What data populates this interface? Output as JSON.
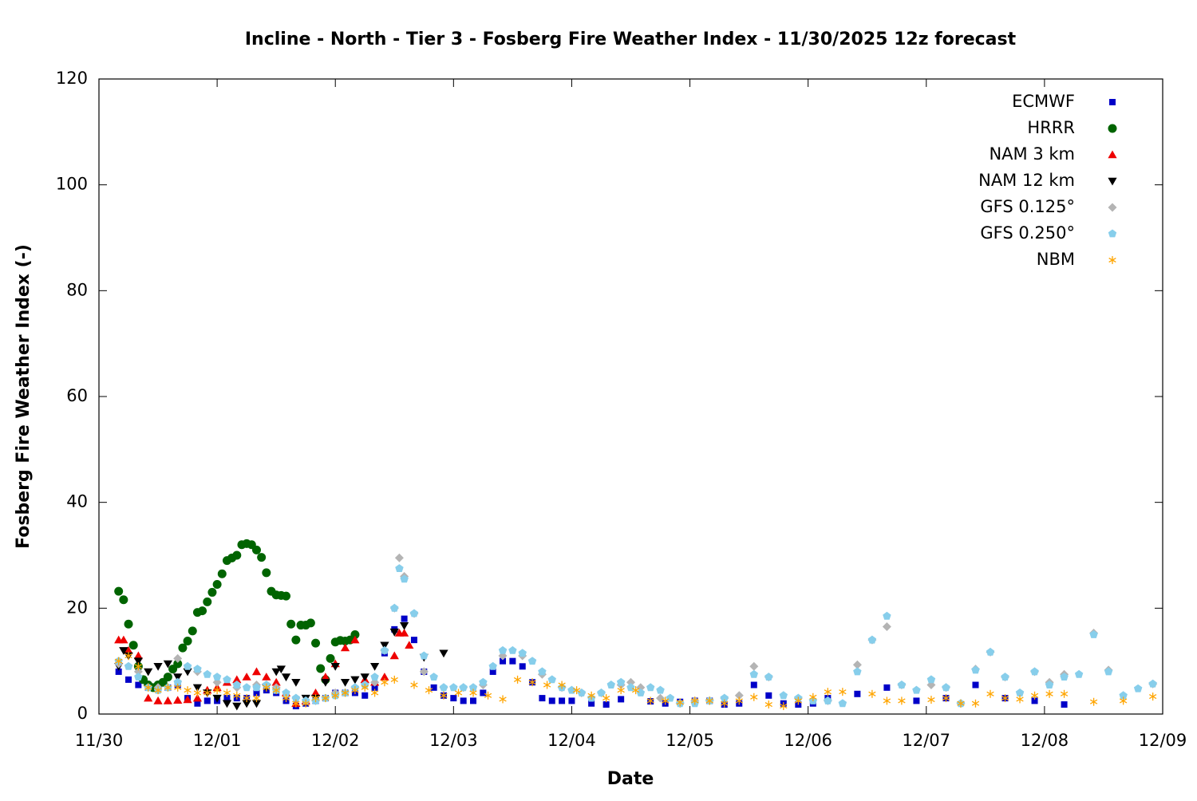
{
  "chart_data": {
    "type": "scatter",
    "title": "Incline - North - Tier 3 - Fosberg Fire Weather Index - 11/30/2025 12z forecast",
    "xlabel": "Date",
    "ylabel": "Fosberg Fire Weather Index (-)",
    "xlim": [
      0,
      216
    ],
    "ylim": [
      0,
      120
    ],
    "xticks": [
      {
        "value": 0,
        "label": "11/30"
      },
      {
        "value": 24,
        "label": "12/01"
      },
      {
        "value": 48,
        "label": "12/02"
      },
      {
        "value": 72,
        "label": "12/03"
      },
      {
        "value": 96,
        "label": "12/04"
      },
      {
        "value": 120,
        "label": "12/05"
      },
      {
        "value": 144,
        "label": "12/06"
      },
      {
        "value": 168,
        "label": "12/07"
      },
      {
        "value": 192,
        "label": "12/08"
      },
      {
        "value": 216,
        "label": "12/09"
      }
    ],
    "yticks": [
      0,
      20,
      40,
      60,
      80,
      100,
      120
    ],
    "legend": "top-right",
    "series": [
      {
        "name": "ECMWF",
        "color": "#0000c8",
        "marker": "square",
        "x": [
          4,
          6,
          8,
          10,
          12,
          14,
          16,
          18,
          20,
          22,
          24,
          26,
          28,
          30,
          32,
          34,
          36,
          38,
          40,
          42,
          44,
          46,
          48,
          50,
          52,
          54,
          56,
          58,
          60,
          62,
          64,
          66,
          68,
          70,
          72,
          74,
          76,
          78,
          80,
          82,
          84,
          86,
          88,
          90,
          92,
          94,
          96,
          100,
          103,
          106,
          112,
          115,
          118,
          121,
          124,
          127,
          130,
          133,
          136,
          139,
          142,
          145,
          148,
          154,
          160,
          166,
          172,
          178,
          184,
          190,
          196
        ],
        "values": [
          8,
          6.5,
          5.5,
          5,
          5,
          5,
          5.5,
          3,
          2,
          2.5,
          2.5,
          3,
          3,
          3,
          4,
          4.5,
          4,
          2.5,
          1.5,
          2,
          2.5,
          3,
          4,
          4,
          4,
          3.5,
          5,
          11.5,
          16,
          18,
          14,
          8,
          5,
          3.5,
          3,
          2.5,
          2.5,
          4,
          8,
          10,
          10,
          9,
          6,
          3,
          2.5,
          2.5,
          2.5,
          2,
          1.8,
          2.8,
          2.4,
          2,
          2.3,
          2.5,
          2.5,
          1.8,
          2,
          5.5,
          3.5,
          2,
          1.8,
          2,
          3,
          3.8,
          5,
          2.5,
          3,
          5.5,
          3,
          2.5,
          1.8
        ]
      },
      {
        "name": "HRRR",
        "color": "#006400",
        "marker": "circle",
        "x": [
          4,
          5,
          6,
          7,
          8,
          9,
          10,
          11,
          12,
          13,
          14,
          15,
          16,
          17,
          18,
          19,
          20,
          21,
          22,
          23,
          24,
          25,
          26,
          27,
          28,
          29,
          30,
          31,
          32,
          33,
          34,
          35,
          36,
          37,
          38,
          39,
          40,
          41,
          42,
          43,
          44,
          45,
          46,
          47,
          48,
          49,
          50,
          51,
          52
        ],
        "values": [
          23.2,
          21.6,
          17,
          13,
          9,
          6.5,
          5.5,
          5,
          5.5,
          6,
          7,
          8.5,
          9.5,
          12.5,
          13.8,
          15.7,
          19.2,
          19.5,
          21.2,
          23,
          24.5,
          26.5,
          29,
          29.5,
          30,
          32,
          32.2,
          32,
          31,
          29.6,
          26.7,
          23.2,
          22.5,
          22.4,
          22.3,
          17,
          14,
          16.8,
          16.8,
          17.2,
          13.4,
          8.6,
          6.5,
          10.5,
          13.6,
          13.9,
          13.8,
          14,
          15
        ]
      },
      {
        "name": "NAM 3 km",
        "color": "#ee0000",
        "marker": "triangle-up",
        "x": [
          4,
          5,
          6,
          8,
          10,
          12,
          14,
          16,
          18,
          20,
          22,
          24,
          26,
          28,
          30,
          32,
          34,
          36,
          38,
          40,
          42,
          44,
          46,
          48,
          50,
          52,
          54,
          56,
          58,
          60,
          61,
          62,
          63
        ],
        "values": [
          14,
          14,
          12,
          11,
          3,
          2.5,
          2.5,
          2.6,
          2.7,
          3,
          4.5,
          5,
          6,
          6.5,
          7,
          8,
          7,
          6,
          4,
          2,
          2.5,
          4,
          7,
          9.5,
          12.5,
          14,
          6.5,
          6,
          7,
          11,
          15.3,
          15.3,
          13
        ]
      },
      {
        "name": "NAM 12 km",
        "color": "#000000",
        "marker": "triangle-down",
        "x": [
          4,
          5,
          6,
          8,
          10,
          12,
          14,
          16,
          18,
          20,
          22,
          24,
          26,
          28,
          30,
          32,
          34,
          36,
          37,
          38,
          40,
          42,
          44,
          46,
          48,
          50,
          52,
          54,
          56,
          58,
          60,
          62,
          66,
          70
        ],
        "values": [
          9,
          12,
          11,
          10,
          8,
          9,
          9.5,
          7,
          8,
          5,
          4,
          3,
          2,
          1.5,
          2,
          2,
          5,
          8,
          8.5,
          7,
          6,
          3,
          3,
          6,
          9,
          6,
          6.5,
          7,
          9,
          13,
          15.5,
          16.7,
          10.7,
          11.5
        ]
      },
      {
        "name": "GFS 0.125°",
        "color": "#b4b4b4",
        "marker": "diamond",
        "x": [
          4,
          8,
          12,
          16,
          20,
          24,
          28,
          32,
          36,
          40,
          44,
          48,
          52,
          56,
          58,
          60,
          61,
          62,
          64,
          66,
          70,
          74,
          78,
          82,
          86,
          90,
          94,
          98,
          102,
          106,
          108,
          110,
          114,
          118,
          121,
          124,
          127,
          130,
          133,
          136,
          142,
          148,
          154,
          157,
          160,
          163,
          169,
          172,
          175,
          178,
          181,
          184,
          190,
          193,
          196,
          202,
          205,
          214
        ],
        "values": [
          9.5,
          8,
          5,
          10.5,
          8,
          6,
          5,
          5.5,
          5,
          3,
          2.5,
          4,
          5,
          6,
          12,
          20,
          29.5,
          26,
          19,
          8,
          5,
          5,
          5.5,
          11,
          11,
          7.5,
          5,
          4,
          4,
          5.5,
          6,
          5,
          3,
          2,
          2.5,
          2.5,
          3,
          3.5,
          9,
          7,
          3,
          2.5,
          9.3,
          14,
          16.5,
          5.5,
          5.5,
          5,
          2,
          8.5,
          11.7,
          7,
          8,
          6,
          7.5,
          15.3,
          8.3,
          5.7
        ]
      },
      {
        "name": "GFS 0.250°",
        "color": "#87ceeb",
        "marker": "pentagon",
        "x": [
          4,
          6,
          8,
          10,
          12,
          14,
          16,
          18,
          20,
          22,
          24,
          26,
          28,
          30,
          32,
          34,
          36,
          38,
          40,
          42,
          44,
          46,
          48,
          50,
          52,
          54,
          56,
          58,
          60,
          61,
          62,
          64,
          66,
          68,
          70,
          72,
          74,
          76,
          78,
          80,
          82,
          84,
          86,
          88,
          90,
          92,
          94,
          96,
          98,
          100,
          102,
          104,
          106,
          108,
          110,
          112,
          114,
          116,
          118,
          121,
          124,
          127,
          133,
          136,
          139,
          142,
          145,
          148,
          151,
          154,
          157,
          160,
          163,
          166,
          169,
          172,
          175,
          178,
          181,
          184,
          187,
          190,
          193,
          196,
          199,
          202,
          205,
          208,
          211,
          214
        ],
        "values": [
          10,
          9,
          7,
          5,
          4.5,
          5,
          6,
          9,
          8.5,
          7.5,
          7,
          6.5,
          5.5,
          5,
          5,
          5.5,
          4.5,
          4,
          3,
          2.5,
          2.5,
          3,
          3.5,
          4,
          5,
          5.5,
          7,
          12,
          20,
          27.5,
          25.5,
          19,
          11,
          7,
          5,
          5,
          5,
          5,
          6,
          9,
          12,
          12,
          11.5,
          10,
          8,
          6.5,
          5,
          4.5,
          4,
          3,
          4,
          5.5,
          6,
          5,
          4,
          5,
          4.5,
          3,
          2,
          2,
          2.5,
          3,
          7.5,
          7,
          3.5,
          3,
          2.5,
          2.5,
          2,
          8,
          14,
          18.5,
          5.5,
          4.5,
          6.5,
          5,
          2,
          8.3,
          11.7,
          7,
          4,
          8,
          5.5,
          7,
          7.5,
          15,
          8,
          3.5,
          4.8,
          5.7
        ]
      },
      {
        "name": "NBM",
        "color": "#ffa500",
        "marker": "asterisk",
        "x": [
          4,
          6,
          8,
          10,
          12,
          14,
          16,
          18,
          20,
          22,
          24,
          26,
          28,
          30,
          32,
          34,
          36,
          38,
          40,
          42,
          44,
          46,
          48,
          50,
          52,
          54,
          56,
          58,
          60,
          64,
          67,
          70,
          73,
          76,
          79,
          82,
          85,
          88,
          91,
          94,
          97,
          100,
          103,
          106,
          109,
          112,
          115,
          118,
          121,
          124,
          127,
          130,
          133,
          136,
          139,
          142,
          145,
          148,
          151,
          157,
          160,
          163,
          169,
          172,
          175,
          178,
          181,
          184,
          187,
          190,
          193,
          196,
          202,
          208,
          214
        ],
        "values": [
          10,
          11,
          9,
          5,
          4.5,
          5,
          5,
          4.5,
          4,
          4,
          4.5,
          4,
          3.5,
          3,
          3,
          5,
          4.5,
          3,
          2,
          2,
          3,
          3,
          3.5,
          4,
          4.5,
          5,
          4,
          6,
          6.5,
          5.5,
          4.5,
          3.5,
          4,
          4,
          3.5,
          2.8,
          6.5,
          6,
          5.5,
          5.5,
          4.5,
          3.5,
          3,
          4.5,
          4.5,
          2.5,
          2.5,
          2.2,
          2.5,
          2.5,
          2,
          2.5,
          3.2,
          1.8,
          1.5,
          2.5,
          3.2,
          4.2,
          4.2,
          3.8,
          2.5,
          2.5,
          2.7,
          3,
          2,
          2,
          3.8,
          3,
          2.8,
          3.5,
          3.8,
          3.8,
          2.3,
          2.5,
          3.3
        ]
      }
    ]
  }
}
